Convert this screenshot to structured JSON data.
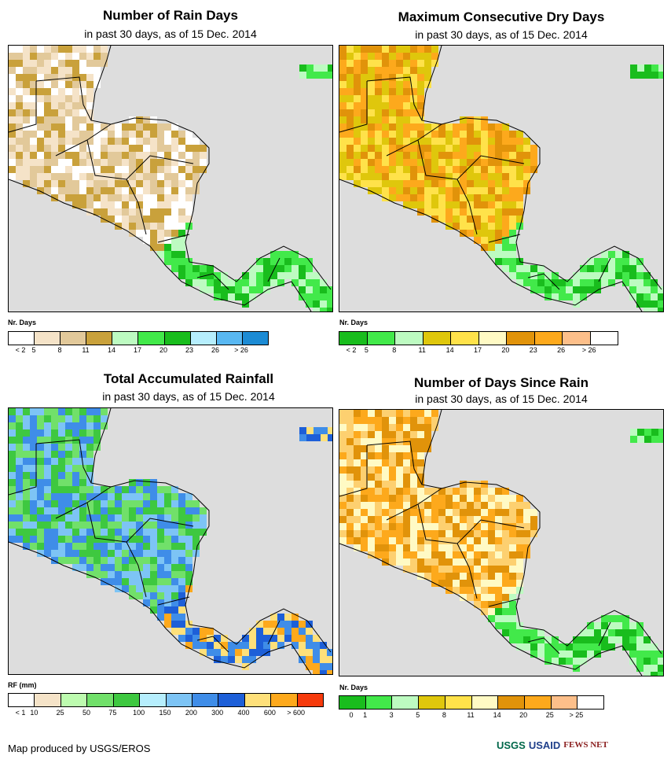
{
  "panels": [
    {
      "id": "rain-days",
      "title": "Number of Rain Days",
      "subtitle": "in past 30 days, as of 15 Dec. 2014",
      "legend_title": "Nr. Days",
      "legend_colors": [
        "#ffffff",
        "#f5e3c8",
        "#e2c99a",
        "#c9a13b",
        "#bdfbc1",
        "#42e94a",
        "#19bd1d",
        "#b6eefd",
        "#59b8f2",
        "#1c8bd4"
      ],
      "legend_ticks": [
        "< 2",
        "5",
        "8",
        "11",
        "14",
        "17",
        "20",
        "23",
        "26",
        "> 26"
      ],
      "map_theme": "tan",
      "map_colors": [
        "#f5e3c8",
        "#e2c99a",
        "#c9a13b",
        "#ffffff"
      ],
      "wet_colors": [
        "#42e94a",
        "#19bd1d",
        "#bdfbc1"
      ]
    },
    {
      "id": "dry-days",
      "title": "Maximum Consecutive Dry Days",
      "subtitle": "in past 30 days, as of 15 Dec. 2014",
      "legend_title": "Nr. Days",
      "legend_colors": [
        "#19bd1d",
        "#42e94a",
        "#bdfbc1",
        "#dfc70c",
        "#ffe24a",
        "#fffac4",
        "#e1930a",
        "#fda91c",
        "#fdbf8a",
        "#ffffff"
      ],
      "legend_ticks": [
        "< 2",
        "5",
        "8",
        "11",
        "14",
        "17",
        "20",
        "23",
        "26",
        "> 26"
      ],
      "map_theme": "orange",
      "map_colors": [
        "#e1930a",
        "#fda91c",
        "#dfc70c",
        "#ffe24a"
      ],
      "wet_colors": [
        "#42e94a",
        "#19bd1d",
        "#bdfbc1"
      ]
    },
    {
      "id": "rainfall",
      "title": "Total Accumulated Rainfall",
      "subtitle": "in past 30 days, as of 15 Dec. 2014",
      "legend_title": "RF (mm)",
      "legend_colors": [
        "#ffffff",
        "#f5e3c8",
        "#bdfbaf",
        "#71e06a",
        "#3ec840",
        "#b6eefd",
        "#7dc4f5",
        "#3f8de8",
        "#1d5fd8",
        "#fee07a",
        "#fda91c",
        "#f63a0c"
      ],
      "legend_ticks": [
        "< 1",
        "10",
        "25",
        "50",
        "75",
        "100",
        "150",
        "200",
        "300",
        "400",
        "600",
        "> 600"
      ],
      "map_theme": "blue",
      "map_colors": [
        "#71e06a",
        "#3ec840",
        "#7dc4f5",
        "#3f8de8"
      ],
      "wet_colors": [
        "#1d5fd8",
        "#3f8de8",
        "#fee07a",
        "#fda91c"
      ]
    },
    {
      "id": "days-since-rain",
      "title": "Number of Days Since Rain",
      "subtitle": "in past 30 days, as of 15 Dec. 2014",
      "legend_title": "Nr. Days",
      "legend_colors": [
        "#19bd1d",
        "#42e94a",
        "#bdfbc1",
        "#dfc70c",
        "#ffe24a",
        "#fffac4",
        "#e1930a",
        "#fda91c",
        "#fdbf8a",
        "#ffffff"
      ],
      "legend_ticks": [
        "0",
        "1",
        "3",
        "5",
        "8",
        "11",
        "14",
        "20",
        "25",
        "> 25"
      ],
      "map_theme": "orange",
      "map_colors": [
        "#e1930a",
        "#fda91c",
        "#fdd070",
        "#fffac4"
      ],
      "wet_colors": [
        "#42e94a",
        "#19bd1d",
        "#bdfbc1"
      ]
    }
  ],
  "credit": "Map produced by USGS/EROS",
  "logos": [
    "USGS",
    "USAID",
    "FEWS NET"
  ],
  "ocean_color": "#dddddd",
  "border_color": "#000000"
}
